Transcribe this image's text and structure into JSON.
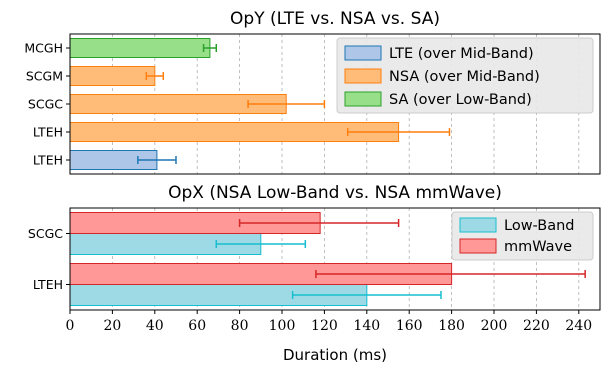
{
  "chart_data": [
    {
      "type": "bar",
      "orientation": "horizontal",
      "title": "OpY (LTE vs. NSA vs. SA)",
      "categories": [
        "MCGH",
        "SCGM",
        "SCGC",
        "LTEH",
        "LTEH"
      ],
      "series": [
        {
          "name": "LTE (over Mid-Band)",
          "color": "#aec7e8",
          "edge": "#1f77b4",
          "points": [
            {
              "category": "LTEH",
              "row": 4,
              "value": 41,
              "err_low": 32,
              "err_high": 50
            }
          ]
        },
        {
          "name": "NSA (over Mid-Band)",
          "color": "#ffbb78",
          "edge": "#ff7f0e",
          "points": [
            {
              "category": "SCGM",
              "row": 1,
              "value": 40,
              "err_low": 36,
              "err_high": 44
            },
            {
              "category": "SCGC",
              "row": 2,
              "value": 102,
              "err_low": 84,
              "err_high": 120
            },
            {
              "category": "LTEH",
              "row": 3,
              "value": 155,
              "err_low": 131,
              "err_high": 179
            }
          ]
        },
        {
          "name": "SA (over Low-Band)",
          "color": "#98df8a",
          "edge": "#2ca02c",
          "points": [
            {
              "category": "MCGH",
              "row": 0,
              "value": 66,
              "err_low": 63,
              "err_high": 69
            }
          ]
        }
      ],
      "legend_position": "top-right"
    },
    {
      "type": "bar",
      "orientation": "horizontal",
      "title": "OpX (NSA Low-Band vs. NSA mmWave)",
      "categories": [
        "SCGC",
        "LTEH"
      ],
      "series": [
        {
          "name": "Low-Band",
          "color": "#9edae5",
          "edge": "#17becf",
          "values": [
            90,
            140
          ],
          "err_low": [
            69,
            105
          ],
          "err_high": [
            111,
            175
          ]
        },
        {
          "name": "mmWave",
          "color": "#ff9896",
          "edge": "#d62728",
          "values": [
            118,
            180
          ],
          "err_low": [
            80,
            116
          ],
          "err_high": [
            155,
            243
          ]
        }
      ],
      "legend_position": "top-right",
      "xlabel": "Duration (ms)",
      "xlim": [
        0,
        250
      ],
      "xticks": [
        0,
        20,
        40,
        60,
        80,
        100,
        120,
        140,
        160,
        180,
        200,
        220,
        240
      ],
      "grid": true
    }
  ]
}
